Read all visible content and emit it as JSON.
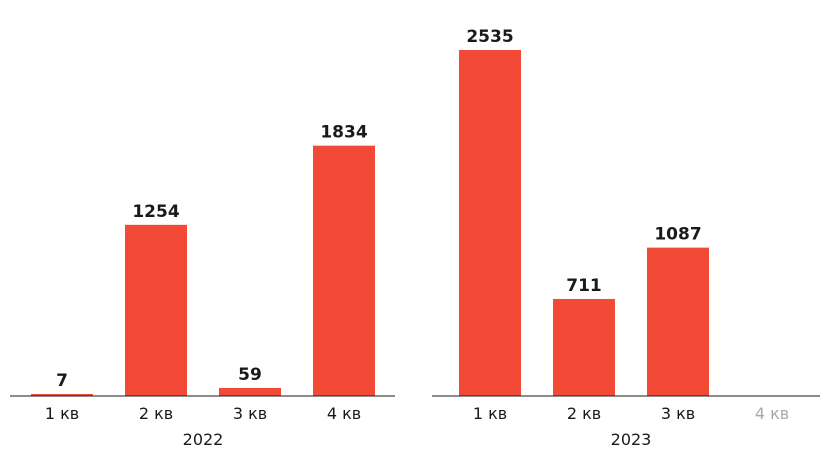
{
  "chart_data": [
    {
      "type": "bar",
      "group_label": "2022",
      "categories": [
        "1 кв",
        "2 кв",
        "3 кв",
        "4 кв"
      ],
      "values": [
        7,
        1254,
        59,
        1834
      ],
      "bar_color": "#f24a36",
      "ylim": [
        0,
        2535
      ],
      "grid": false
    },
    {
      "type": "bar",
      "group_label": "2023",
      "categories": [
        "1 кв",
        "2 кв",
        "3 кв",
        "4 кв"
      ],
      "values": [
        2535,
        711,
        1087,
        null
      ],
      "bar_color": "#f24a36",
      "ylim": [
        0,
        2535
      ],
      "grid": false
    }
  ]
}
